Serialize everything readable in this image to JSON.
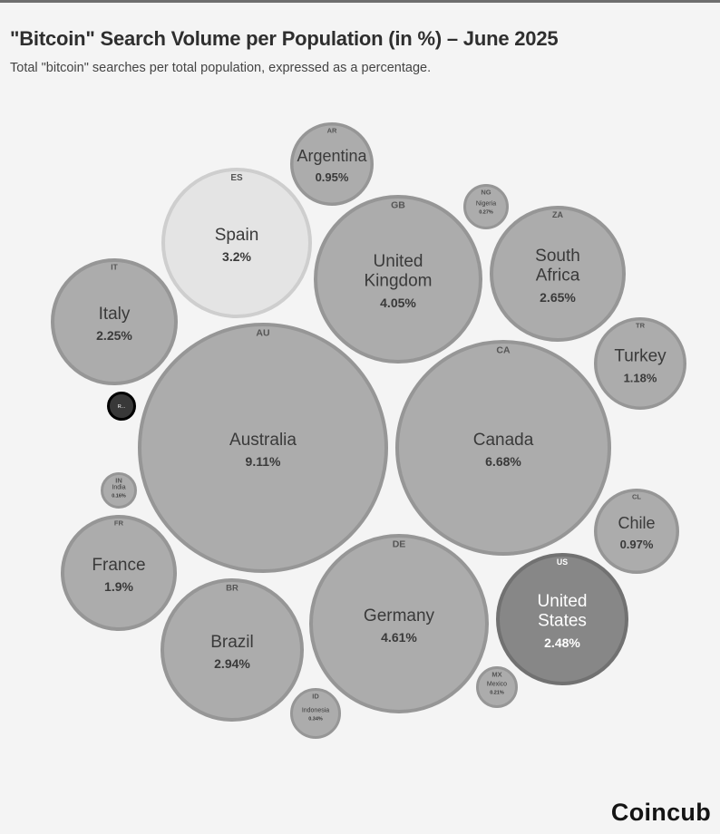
{
  "header": {
    "title": "\"Bitcoin\" Search Volume per Population (in %) – June 2025",
    "subtitle": "Total \"bitcoin\" searches per total population, expressed as a percentage."
  },
  "brand": {
    "logo": "Coincub"
  },
  "chart_data": {
    "type": "bubble",
    "unit": "%",
    "series": [
      {
        "code": "AU",
        "name": "Australia",
        "value": 9.11,
        "color": "#acacac",
        "text": "#3a3a3a"
      },
      {
        "code": "CA",
        "name": "Canada",
        "value": 6.68,
        "color": "#acacac",
        "text": "#3a3a3a"
      },
      {
        "code": "DE",
        "name": "Germany",
        "value": 4.61,
        "color": "#acacac",
        "text": "#3a3a3a"
      },
      {
        "code": "GB",
        "name": "United Kingdom",
        "value": 4.05,
        "color": "#acacac",
        "text": "#3a3a3a"
      },
      {
        "code": "ES",
        "name": "Spain",
        "value": 3.2,
        "color": "#e4e4e4",
        "text": "#3a3a3a"
      },
      {
        "code": "BR",
        "name": "Brazil",
        "value": 2.94,
        "color": "#acacac",
        "text": "#3a3a3a"
      },
      {
        "code": "ZA",
        "name": "South Africa",
        "value": 2.65,
        "color": "#acacac",
        "text": "#3a3a3a"
      },
      {
        "code": "US",
        "name": "United States",
        "value": 2.48,
        "color": "#878787",
        "text": "#ffffff"
      },
      {
        "code": "IT",
        "name": "Italy",
        "value": 2.25,
        "color": "#acacac",
        "text": "#3a3a3a"
      },
      {
        "code": "FR",
        "name": "France",
        "value": 1.9,
        "color": "#acacac",
        "text": "#3a3a3a"
      },
      {
        "code": "TR",
        "name": "Turkey",
        "value": 1.18,
        "color": "#acacac",
        "text": "#3a3a3a"
      },
      {
        "code": "CL",
        "name": "Chile",
        "value": 0.97,
        "color": "#acacac",
        "text": "#3a3a3a"
      },
      {
        "code": "AR",
        "name": "Argentina",
        "value": 0.95,
        "color": "#acacac",
        "text": "#3a3a3a"
      },
      {
        "code": "ID",
        "name": "Indonesia",
        "value": 0.34,
        "color": "#acacac",
        "text": "#3a3a3a"
      },
      {
        "code": "NG",
        "name": "Nigeria",
        "value": 0.27,
        "color": "#acacac",
        "text": "#3a3a3a"
      },
      {
        "code": "MX",
        "name": "Mexico",
        "value": 0.21,
        "color": "#acacac",
        "text": "#3a3a3a"
      },
      {
        "code": "IN",
        "name": "India",
        "value": 0.16,
        "color": "#acacac",
        "text": "#3a3a3a"
      },
      {
        "code": "",
        "name": "R...",
        "value": null,
        "color": "#383838",
        "text": "#ffffff"
      }
    ]
  }
}
